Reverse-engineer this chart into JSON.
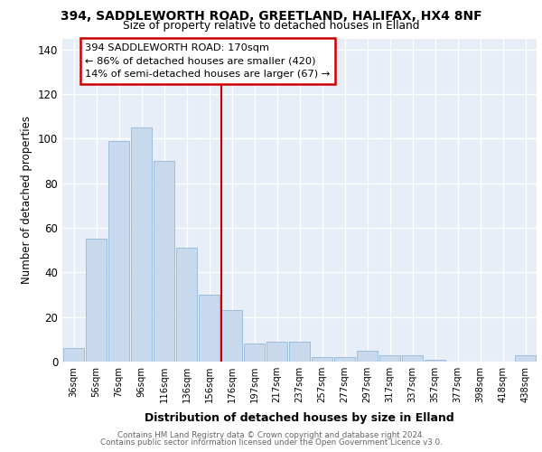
{
  "title": "394, SADDLEWORTH ROAD, GREETLAND, HALIFAX, HX4 8NF",
  "subtitle": "Size of property relative to detached houses in Elland",
  "xlabel": "Distribution of detached houses by size in Elland",
  "ylabel": "Number of detached properties",
  "categories": [
    "36sqm",
    "56sqm",
    "76sqm",
    "96sqm",
    "116sqm",
    "136sqm",
    "156sqm",
    "176sqm",
    "197sqm",
    "217sqm",
    "237sqm",
    "257sqm",
    "277sqm",
    "297sqm",
    "317sqm",
    "337sqm",
    "357sqm",
    "377sqm",
    "398sqm",
    "418sqm",
    "438sqm"
  ],
  "values": [
    6,
    55,
    99,
    105,
    90,
    51,
    30,
    23,
    8,
    9,
    9,
    2,
    2,
    5,
    3,
    3,
    1,
    0,
    0,
    0,
    3
  ],
  "bar_color": "#c8d9ee",
  "bar_edge_color": "#93b8d8",
  "vline_label": "394 SADDLEWORTH ROAD: 170sqm",
  "annotation_line1": "← 86% of detached houses are smaller (420)",
  "annotation_line2": "14% of semi-detached houses are larger (67) →",
  "vline_color": "#cc0000",
  "annotation_box_edgecolor": "#cc0000",
  "ylim": [
    0,
    145
  ],
  "yticks": [
    0,
    20,
    40,
    60,
    80,
    100,
    120,
    140
  ],
  "footer1": "Contains HM Land Registry data © Crown copyright and database right 2024.",
  "footer2": "Contains public sector information licensed under the Open Government Licence v3.0.",
  "plot_bg_color": "#e8eef7",
  "fig_bg_color": "#ffffff"
}
